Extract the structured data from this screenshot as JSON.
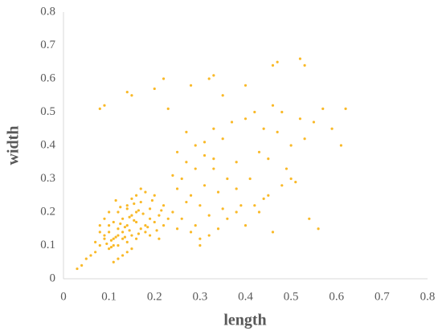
{
  "chart_data": {
    "type": "scatter",
    "x_label": "length",
    "y_label": "width",
    "color": "#f9b928",
    "xlim": [
      0,
      0.8
    ],
    "xticks": [
      0,
      0.1,
      0.2,
      0.3,
      0.4,
      0.5,
      0.6,
      0.7,
      0.8
    ],
    "ylim": [
      0,
      0.8
    ],
    "yticks": [
      0,
      0.1,
      0.2,
      0.3,
      0.4,
      0.5,
      0.6,
      0.7,
      0.8
    ],
    "grid": false,
    "x": [
      0.1,
      0.12,
      0.14,
      0.15,
      0.13,
      0.11,
      0.16,
      0.17,
      0.12,
      0.14,
      0.09,
      0.18,
      0.13,
      0.15,
      0.11,
      0.16,
      0.14,
      0.12,
      0.1,
      0.19,
      0.08,
      0.07,
      0.06,
      0.05,
      0.09,
      0.1,
      0.11,
      0.08,
      0.07,
      0.12,
      0.13,
      0.14,
      0.15,
      0.16,
      0.17,
      0.18,
      0.2,
      0.21,
      0.22,
      0.19,
      0.23,
      0.24,
      0.25,
      0.22,
      0.2,
      0.21,
      0.19,
      0.18,
      0.17,
      0.16,
      0.15,
      0.14,
      0.13,
      0.12,
      0.11,
      0.1,
      0.09,
      0.08,
      0.04,
      0.03,
      0.26,
      0.28,
      0.3,
      0.27,
      0.29,
      0.31,
      0.33,
      0.32,
      0.25,
      0.24,
      0.26,
      0.28,
      0.3,
      0.34,
      0.35,
      0.36,
      0.27,
      0.29,
      0.31,
      0.33,
      0.38,
      0.4,
      0.42,
      0.44,
      0.46,
      0.48,
      0.5,
      0.52,
      0.41,
      0.43,
      0.45,
      0.47,
      0.39,
      0.37,
      0.49,
      0.51,
      0.53,
      0.55,
      0.57,
      0.62,
      0.46,
      0.47,
      0.52,
      0.53,
      0.32,
      0.33,
      0.22,
      0.14,
      0.15,
      0.09,
      0.08,
      0.2,
      0.23,
      0.28,
      0.35,
      0.4,
      0.54,
      0.56,
      0.59,
      0.61,
      0.3,
      0.32,
      0.34,
      0.36,
      0.38,
      0.4,
      0.42,
      0.44,
      0.46,
      0.48,
      0.5,
      0.45,
      0.43,
      0.38,
      0.35,
      0.33,
      0.31,
      0.29,
      0.27,
      0.25,
      0.135,
      0.145,
      0.125,
      0.155,
      0.165,
      0.115,
      0.105,
      0.095,
      0.175,
      0.185,
      0.135,
      0.145,
      0.125,
      0.155,
      0.165,
      0.115,
      0.105,
      0.195,
      0.205,
      0.215
    ],
    "values": [
      0.14,
      0.15,
      0.16,
      0.13,
      0.18,
      0.12,
      0.17,
      0.15,
      0.2,
      0.11,
      0.13,
      0.16,
      0.14,
      0.19,
      0.17,
      0.12,
      0.22,
      0.1,
      0.16,
      0.18,
      0.1,
      0.08,
      0.07,
      0.06,
      0.12,
      0.09,
      0.1,
      0.14,
      0.11,
      0.13,
      0.12,
      0.21,
      0.24,
      0.2,
      0.23,
      0.14,
      0.17,
      0.19,
      0.16,
      0.21,
      0.18,
      0.2,
      0.15,
      0.22,
      0.25,
      0.12,
      0.13,
      0.26,
      0.27,
      0.25,
      0.09,
      0.08,
      0.07,
      0.06,
      0.05,
      0.2,
      0.18,
      0.16,
      0.04,
      0.03,
      0.3,
      0.25,
      0.22,
      0.35,
      0.4,
      0.28,
      0.33,
      0.19,
      0.38,
      0.31,
      0.18,
      0.14,
      0.12,
      0.26,
      0.42,
      0.3,
      0.23,
      0.16,
      0.37,
      0.45,
      0.35,
      0.48,
      0.5,
      0.45,
      0.52,
      0.5,
      0.4,
      0.48,
      0.3,
      0.38,
      0.25,
      0.44,
      0.22,
      0.47,
      0.33,
      0.29,
      0.42,
      0.47,
      0.51,
      0.51,
      0.64,
      0.65,
      0.66,
      0.64,
      0.6,
      0.61,
      0.6,
      0.56,
      0.55,
      0.52,
      0.51,
      0.57,
      0.51,
      0.58,
      0.55,
      0.58,
      0.18,
      0.15,
      0.45,
      0.4,
      0.1,
      0.13,
      0.15,
      0.18,
      0.2,
      0.16,
      0.22,
      0.24,
      0.14,
      0.28,
      0.3,
      0.36,
      0.2,
      0.27,
      0.21,
      0.36,
      0.41,
      0.33,
      0.44,
      0.27,
      0.155,
      0.145,
      0.165,
      0.175,
      0.135,
      0.125,
      0.115,
      0.105,
      0.195,
      0.155,
      0.125,
      0.185,
      0.215,
      0.225,
      0.205,
      0.235,
      0.095,
      0.235,
      0.145,
      0.205
    ]
  }
}
